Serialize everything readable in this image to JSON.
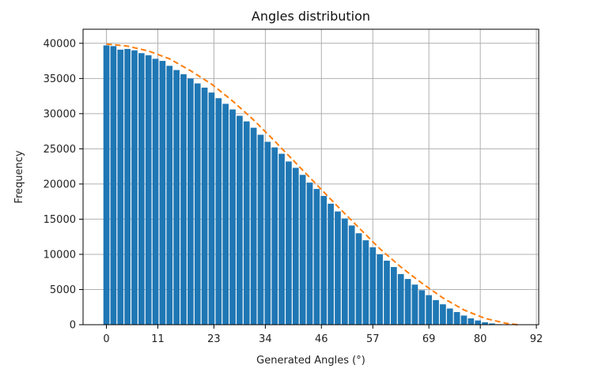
{
  "chart_data": {
    "type": "bar",
    "title": "Angles distribution",
    "xlabel": "Generated Angles (°)",
    "ylabel": "Frequency",
    "xlim": [
      -5,
      92.5
    ],
    "ylim": [
      0,
      42000
    ],
    "xticks": [
      0,
      11,
      23,
      34,
      46,
      57,
      69,
      80,
      92
    ],
    "xtick_labels": [
      "0",
      "11",
      "23",
      "34",
      "46",
      "57",
      "69",
      "80",
      "92"
    ],
    "yticks": [
      0,
      5000,
      10000,
      15000,
      20000,
      25000,
      30000,
      35000,
      40000
    ],
    "ytick_labels": [
      "0",
      "5000",
      "10000",
      "15000",
      "20000",
      "25000",
      "30000",
      "35000",
      "40000"
    ],
    "grid": true,
    "bar_color": "#1f77b4",
    "bar_width": 1.3,
    "x": [
      0,
      1.5,
      3,
      4.5,
      6,
      7.5,
      9,
      10.5,
      12,
      13.5,
      15,
      16.5,
      18,
      19.5,
      21,
      22.5,
      24,
      25.5,
      27,
      28.5,
      30,
      31.5,
      33,
      34.5,
      36,
      37.5,
      39,
      40.5,
      42,
      43.5,
      45,
      46.5,
      48,
      49.5,
      51,
      52.5,
      54,
      55.5,
      57,
      58.5,
      60,
      61.5,
      63,
      64.5,
      66,
      67.5,
      69,
      70.5,
      72,
      73.5,
      75,
      76.5,
      78,
      79.5,
      81,
      82.5,
      84,
      85.5,
      87
    ],
    "values": [
      39700,
      39600,
      39100,
      39200,
      39000,
      38600,
      38300,
      37800,
      37500,
      36800,
      36200,
      35600,
      35000,
      34300,
      33700,
      33000,
      32200,
      31400,
      30600,
      29700,
      28900,
      28000,
      27000,
      26000,
      25200,
      24300,
      23200,
      22300,
      21300,
      20200,
      19300,
      18300,
      17200,
      16100,
      15100,
      14100,
      13000,
      12000,
      11000,
      10000,
      9100,
      8200,
      7200,
      6500,
      5700,
      4900,
      4200,
      3500,
      2900,
      2300,
      1800,
      1300,
      900,
      600,
      350,
      180,
      70,
      20,
      5
    ],
    "series": [
      {
        "name": "",
        "type": "dashed-line",
        "color": "#ff7f0e",
        "x": [
          0,
          4.5,
          9,
          13.5,
          18,
          22.5,
          27,
          31.5,
          36,
          40.5,
          45,
          49.5,
          54,
          58.5,
          63,
          67.5,
          72,
          76.5,
          81,
          85.5,
          88
        ],
        "values": [
          39900,
          39600,
          38900,
          37800,
          36100,
          34200,
          31800,
          29100,
          26100,
          23000,
          19900,
          16800,
          13800,
          10800,
          8200,
          5900,
          3800,
          2100,
          900,
          200,
          0
        ]
      }
    ]
  }
}
